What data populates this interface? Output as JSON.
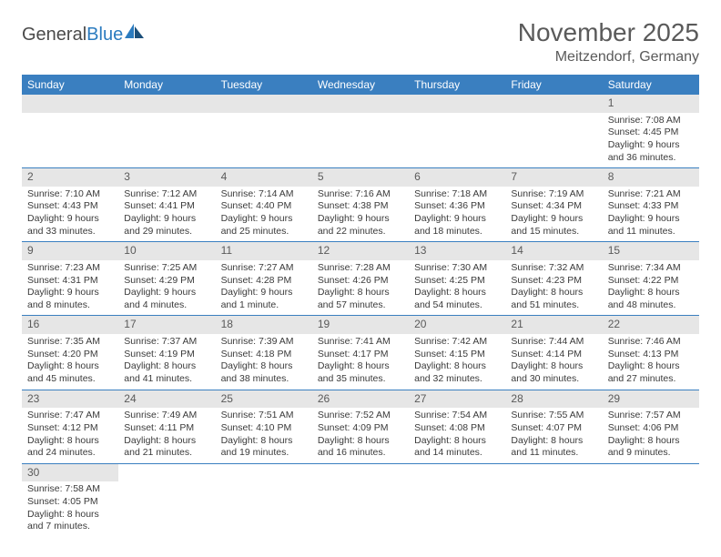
{
  "logo": {
    "text1": "General",
    "text2": "Blue"
  },
  "title": "November 2025",
  "location": "Meitzendorf, Germany",
  "colors": {
    "header_bg": "#3a7fc0",
    "header_text": "#ffffff",
    "daynum_bg": "#e6e6e6",
    "text": "#3a3a3a",
    "title_text": "#5a5a5a",
    "row_border": "#3a7fc0"
  },
  "day_headers": [
    "Sunday",
    "Monday",
    "Tuesday",
    "Wednesday",
    "Thursday",
    "Friday",
    "Saturday"
  ],
  "weeks": [
    [
      null,
      null,
      null,
      null,
      null,
      null,
      {
        "n": "1",
        "sunrise": "Sunrise: 7:08 AM",
        "sunset": "Sunset: 4:45 PM",
        "day1": "Daylight: 9 hours",
        "day2": "and 36 minutes."
      }
    ],
    [
      {
        "n": "2",
        "sunrise": "Sunrise: 7:10 AM",
        "sunset": "Sunset: 4:43 PM",
        "day1": "Daylight: 9 hours",
        "day2": "and 33 minutes."
      },
      {
        "n": "3",
        "sunrise": "Sunrise: 7:12 AM",
        "sunset": "Sunset: 4:41 PM",
        "day1": "Daylight: 9 hours",
        "day2": "and 29 minutes."
      },
      {
        "n": "4",
        "sunrise": "Sunrise: 7:14 AM",
        "sunset": "Sunset: 4:40 PM",
        "day1": "Daylight: 9 hours",
        "day2": "and 25 minutes."
      },
      {
        "n": "5",
        "sunrise": "Sunrise: 7:16 AM",
        "sunset": "Sunset: 4:38 PM",
        "day1": "Daylight: 9 hours",
        "day2": "and 22 minutes."
      },
      {
        "n": "6",
        "sunrise": "Sunrise: 7:18 AM",
        "sunset": "Sunset: 4:36 PM",
        "day1": "Daylight: 9 hours",
        "day2": "and 18 minutes."
      },
      {
        "n": "7",
        "sunrise": "Sunrise: 7:19 AM",
        "sunset": "Sunset: 4:34 PM",
        "day1": "Daylight: 9 hours",
        "day2": "and 15 minutes."
      },
      {
        "n": "8",
        "sunrise": "Sunrise: 7:21 AM",
        "sunset": "Sunset: 4:33 PM",
        "day1": "Daylight: 9 hours",
        "day2": "and 11 minutes."
      }
    ],
    [
      {
        "n": "9",
        "sunrise": "Sunrise: 7:23 AM",
        "sunset": "Sunset: 4:31 PM",
        "day1": "Daylight: 9 hours",
        "day2": "and 8 minutes."
      },
      {
        "n": "10",
        "sunrise": "Sunrise: 7:25 AM",
        "sunset": "Sunset: 4:29 PM",
        "day1": "Daylight: 9 hours",
        "day2": "and 4 minutes."
      },
      {
        "n": "11",
        "sunrise": "Sunrise: 7:27 AM",
        "sunset": "Sunset: 4:28 PM",
        "day1": "Daylight: 9 hours",
        "day2": "and 1 minute."
      },
      {
        "n": "12",
        "sunrise": "Sunrise: 7:28 AM",
        "sunset": "Sunset: 4:26 PM",
        "day1": "Daylight: 8 hours",
        "day2": "and 57 minutes."
      },
      {
        "n": "13",
        "sunrise": "Sunrise: 7:30 AM",
        "sunset": "Sunset: 4:25 PM",
        "day1": "Daylight: 8 hours",
        "day2": "and 54 minutes."
      },
      {
        "n": "14",
        "sunrise": "Sunrise: 7:32 AM",
        "sunset": "Sunset: 4:23 PM",
        "day1": "Daylight: 8 hours",
        "day2": "and 51 minutes."
      },
      {
        "n": "15",
        "sunrise": "Sunrise: 7:34 AM",
        "sunset": "Sunset: 4:22 PM",
        "day1": "Daylight: 8 hours",
        "day2": "and 48 minutes."
      }
    ],
    [
      {
        "n": "16",
        "sunrise": "Sunrise: 7:35 AM",
        "sunset": "Sunset: 4:20 PM",
        "day1": "Daylight: 8 hours",
        "day2": "and 45 minutes."
      },
      {
        "n": "17",
        "sunrise": "Sunrise: 7:37 AM",
        "sunset": "Sunset: 4:19 PM",
        "day1": "Daylight: 8 hours",
        "day2": "and 41 minutes."
      },
      {
        "n": "18",
        "sunrise": "Sunrise: 7:39 AM",
        "sunset": "Sunset: 4:18 PM",
        "day1": "Daylight: 8 hours",
        "day2": "and 38 minutes."
      },
      {
        "n": "19",
        "sunrise": "Sunrise: 7:41 AM",
        "sunset": "Sunset: 4:17 PM",
        "day1": "Daylight: 8 hours",
        "day2": "and 35 minutes."
      },
      {
        "n": "20",
        "sunrise": "Sunrise: 7:42 AM",
        "sunset": "Sunset: 4:15 PM",
        "day1": "Daylight: 8 hours",
        "day2": "and 32 minutes."
      },
      {
        "n": "21",
        "sunrise": "Sunrise: 7:44 AM",
        "sunset": "Sunset: 4:14 PM",
        "day1": "Daylight: 8 hours",
        "day2": "and 30 minutes."
      },
      {
        "n": "22",
        "sunrise": "Sunrise: 7:46 AM",
        "sunset": "Sunset: 4:13 PM",
        "day1": "Daylight: 8 hours",
        "day2": "and 27 minutes."
      }
    ],
    [
      {
        "n": "23",
        "sunrise": "Sunrise: 7:47 AM",
        "sunset": "Sunset: 4:12 PM",
        "day1": "Daylight: 8 hours",
        "day2": "and 24 minutes."
      },
      {
        "n": "24",
        "sunrise": "Sunrise: 7:49 AM",
        "sunset": "Sunset: 4:11 PM",
        "day1": "Daylight: 8 hours",
        "day2": "and 21 minutes."
      },
      {
        "n": "25",
        "sunrise": "Sunrise: 7:51 AM",
        "sunset": "Sunset: 4:10 PM",
        "day1": "Daylight: 8 hours",
        "day2": "and 19 minutes."
      },
      {
        "n": "26",
        "sunrise": "Sunrise: 7:52 AM",
        "sunset": "Sunset: 4:09 PM",
        "day1": "Daylight: 8 hours",
        "day2": "and 16 minutes."
      },
      {
        "n": "27",
        "sunrise": "Sunrise: 7:54 AM",
        "sunset": "Sunset: 4:08 PM",
        "day1": "Daylight: 8 hours",
        "day2": "and 14 minutes."
      },
      {
        "n": "28",
        "sunrise": "Sunrise: 7:55 AM",
        "sunset": "Sunset: 4:07 PM",
        "day1": "Daylight: 8 hours",
        "day2": "and 11 minutes."
      },
      {
        "n": "29",
        "sunrise": "Sunrise: 7:57 AM",
        "sunset": "Sunset: 4:06 PM",
        "day1": "Daylight: 8 hours",
        "day2": "and 9 minutes."
      }
    ],
    [
      {
        "n": "30",
        "sunrise": "Sunrise: 7:58 AM",
        "sunset": "Sunset: 4:05 PM",
        "day1": "Daylight: 8 hours",
        "day2": "and 7 minutes."
      },
      null,
      null,
      null,
      null,
      null,
      null
    ]
  ]
}
